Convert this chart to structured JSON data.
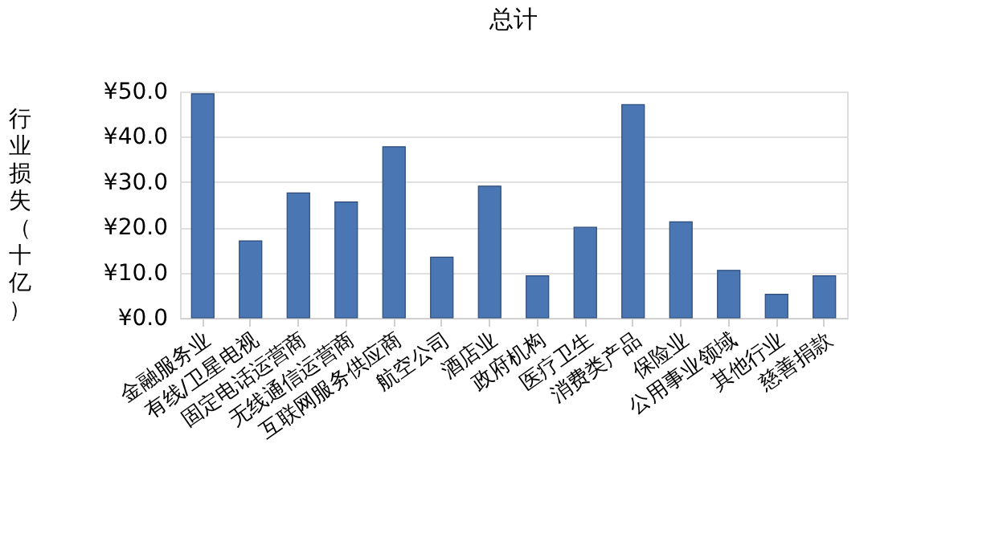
{
  "chart_data": {
    "type": "bar",
    "title": "总计",
    "ylabel": "行业损失（十亿）",
    "categories": [
      "金融服务业",
      "有线/卫星电视",
      "固定电话运营商",
      "无线通信运营商",
      "互联网服务供应商",
      "航空公司",
      "酒店业",
      "政府机构",
      "医疗卫生",
      "消费类产品",
      "保险业",
      "公用事业领域",
      "其他行业",
      "慈善捐款"
    ],
    "values": [
      49.5,
      17,
      27.6,
      25.6,
      37.8,
      13.4,
      29.1,
      9.3,
      20,
      47.1,
      21.2,
      10.5,
      5.2,
      9.3
    ],
    "color": "#4a76b4",
    "ylim": [
      0,
      50
    ],
    "yticks": [
      {
        "value": 0,
        "label": "¥0.0"
      },
      {
        "value": 10,
        "label": "¥10.0"
      },
      {
        "value": 20,
        "label": "¥20.0"
      },
      {
        "value": 30,
        "label": "¥30.0"
      },
      {
        "value": 40,
        "label": "¥40.0"
      },
      {
        "value": 50,
        "label": "¥50.0"
      }
    ],
    "grid": "y"
  }
}
